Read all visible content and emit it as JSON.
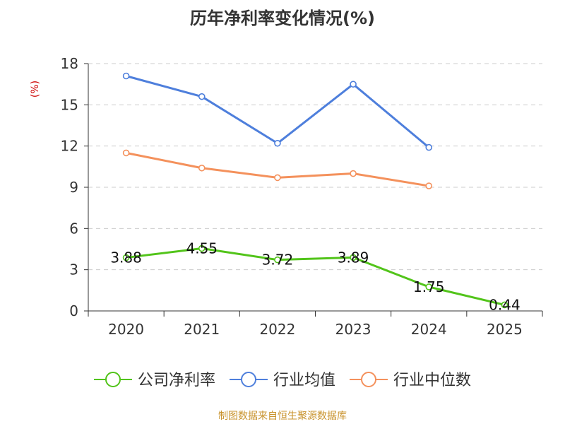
{
  "chart_data": {
    "type": "line",
    "title": "历年净利率变化情况(%)",
    "ylabel": "(%)",
    "ylim": [
      0,
      18
    ],
    "yticks": [
      0,
      3,
      6,
      9,
      12,
      15,
      18
    ],
    "categories": [
      "2020",
      "2021",
      "2022",
      "2023",
      "2024",
      "2025"
    ],
    "grid": true,
    "legend_position": "bottom",
    "series": [
      {
        "name": "公司净利率",
        "color": "#52c41a",
        "values": [
          3.88,
          4.55,
          3.72,
          3.89,
          1.75,
          0.44
        ],
        "labels": [
          "3.88",
          "4.55",
          "3.72",
          "3.89",
          "1.75",
          "0.44"
        ]
      },
      {
        "name": "行业均值",
        "color": "#4e7fdc",
        "values": [
          17.1,
          15.6,
          12.2,
          16.5,
          11.9,
          null
        ]
      },
      {
        "name": "行业中位数",
        "color": "#f4915c",
        "values": [
          11.5,
          10.4,
          9.7,
          10.0,
          9.1,
          null
        ]
      }
    ]
  },
  "footer": "制图数据来自恒生聚源数据库",
  "colors": {
    "axis": "#333333",
    "grid": "#cccccc",
    "ylabel": "#cc0000",
    "footer": "#c8922b"
  }
}
